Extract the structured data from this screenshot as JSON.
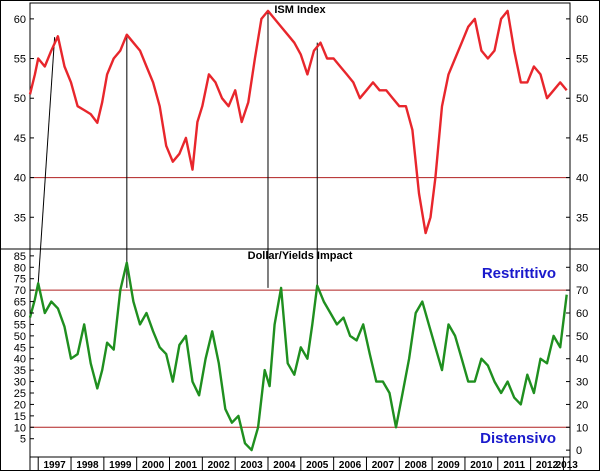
{
  "chart_data": [
    {
      "type": "line",
      "title": "ISM Index",
      "ylim": [
        31,
        62
      ],
      "yticks": [
        35,
        40,
        45,
        50,
        55,
        60
      ],
      "reference_line": 40,
      "colors": {
        "series": "#e8262c",
        "reference": "#b02020"
      },
      "series": [
        {
          "x": [
            1996.75,
            1996.9,
            1997.0,
            1997.2,
            1997.4,
            1997.6,
            1997.8,
            1998.0,
            1998.2,
            1998.4,
            1998.6,
            1998.8,
            1998.95,
            1999.1,
            1999.3,
            1999.5,
            1999.7,
            1999.9,
            2000.1,
            2000.3,
            2000.5,
            2000.7,
            2000.9,
            2001.1,
            2001.3,
            2001.5,
            2001.7,
            2001.85,
            2002.0,
            2002.2,
            2002.4,
            2002.6,
            2002.8,
            2003.0,
            2003.2,
            2003.4,
            2003.6,
            2003.8,
            2004.0,
            2004.2,
            2004.4,
            2004.6,
            2004.8,
            2005.0,
            2005.2,
            2005.4,
            2005.6,
            2005.8,
            2006.0,
            2006.2,
            2006.4,
            2006.6,
            2006.8,
            2007.0,
            2007.2,
            2007.4,
            2007.6,
            2007.8,
            2008.0,
            2008.2,
            2008.4,
            2008.6,
            2008.8,
            2008.95,
            2009.1,
            2009.3,
            2009.5,
            2009.7,
            2009.9,
            2010.1,
            2010.3,
            2010.5,
            2010.7,
            2010.9,
            2011.1,
            2011.3,
            2011.5,
            2011.7,
            2011.9,
            2012.1,
            2012.3,
            2012.5,
            2012.7,
            2012.9,
            2013.1
          ],
          "values": [
            50.5,
            53,
            55,
            54,
            56,
            57.8,
            54,
            52,
            49,
            48.5,
            48,
            46.9,
            49.5,
            53,
            55,
            56,
            58,
            57,
            56,
            54,
            52,
            49,
            44,
            42,
            43,
            45,
            41,
            47,
            49,
            53,
            52,
            50,
            49,
            51,
            47,
            49.5,
            55,
            60,
            61,
            60,
            59,
            58,
            57,
            55.5,
            53,
            56,
            57,
            55,
            55,
            54,
            53,
            52,
            50,
            51,
            52,
            51,
            51,
            50,
            49,
            49,
            46,
            38,
            33,
            35,
            40,
            49,
            53,
            55,
            57,
            59,
            60,
            56,
            55,
            56,
            60,
            61,
            56,
            52,
            52,
            54,
            53,
            50,
            51,
            52,
            51
          ]
        }
      ]
    },
    {
      "type": "line",
      "title": "Dollar/Yields Impact",
      "ylim": [
        -3,
        88
      ],
      "yticks_left": [
        5,
        10,
        15,
        20,
        25,
        30,
        35,
        40,
        45,
        50,
        55,
        60,
        65,
        70,
        75,
        80,
        85
      ],
      "yticks_right": [
        0,
        10,
        20,
        30,
        40,
        50,
        60,
        70,
        80
      ],
      "reference_lines": [
        70,
        10
      ],
      "annotations": [
        "Restrittivo",
        "Distensivo"
      ],
      "colors": {
        "series": "#1f8f1f",
        "reference": "#b02020",
        "annotation": "#1a1acc"
      },
      "series": [
        {
          "x": [
            1996.75,
            1996.9,
            1997.0,
            1997.2,
            1997.4,
            1997.6,
            1997.8,
            1998.0,
            1998.2,
            1998.4,
            1998.6,
            1998.8,
            1998.95,
            1999.1,
            1999.3,
            1999.5,
            1999.7,
            1999.9,
            2000.1,
            2000.3,
            2000.5,
            2000.7,
            2000.9,
            2001.1,
            2001.3,
            2001.5,
            2001.7,
            2001.9,
            2002.1,
            2002.3,
            2002.5,
            2002.7,
            2002.9,
            2003.1,
            2003.3,
            2003.5,
            2003.7,
            2003.9,
            2004.05,
            2004.2,
            2004.4,
            2004.6,
            2004.8,
            2005.0,
            2005.2,
            2005.35,
            2005.5,
            2005.7,
            2005.9,
            2006.1,
            2006.3,
            2006.5,
            2006.7,
            2006.9,
            2007.1,
            2007.3,
            2007.5,
            2007.7,
            2007.9,
            2008.1,
            2008.3,
            2008.5,
            2008.7,
            2008.9,
            2009.1,
            2009.3,
            2009.5,
            2009.7,
            2009.9,
            2010.1,
            2010.3,
            2010.5,
            2010.7,
            2010.9,
            2011.1,
            2011.3,
            2011.5,
            2011.7,
            2011.9,
            2012.1,
            2012.3,
            2012.5,
            2012.7,
            2012.9,
            2013.1
          ],
          "values": [
            58,
            66,
            73,
            60,
            65,
            62,
            54,
            40,
            42,
            55,
            38,
            27,
            35,
            47,
            44,
            70,
            82,
            65,
            55,
            60,
            52,
            45,
            42,
            30,
            46,
            50,
            30,
            24,
            40,
            52,
            38,
            18,
            12,
            15,
            3,
            0,
            10,
            35,
            28,
            55,
            71,
            38,
            33,
            45,
            40,
            55,
            72,
            65,
            60,
            55,
            58,
            50,
            48,
            55,
            42,
            30,
            30,
            25,
            10,
            25,
            40,
            60,
            65,
            55,
            45,
            35,
            55,
            50,
            40,
            30,
            30,
            40,
            37,
            30,
            25,
            30,
            23,
            20,
            33,
            25,
            40,
            38,
            50,
            45,
            68
          ]
        }
      ]
    }
  ],
  "x_axis": {
    "range": [
      1996.75,
      2013.2
    ],
    "years": [
      "1997",
      "1998",
      "1999",
      "2000",
      "2001",
      "2002",
      "2003",
      "2004",
      "2005",
      "2006",
      "2007",
      "2008",
      "2009",
      "2010",
      "2011",
      "2012",
      "2013"
    ]
  },
  "connector_lines": [
    {
      "top": {
        "x": 1997.5,
        "y": 57.7
      },
      "bottom": {
        "x": 1997.0,
        "y": 73
      }
    },
    {
      "top": {
        "x": 1999.7,
        "y": 58
      },
      "bottom": {
        "x": 1999.7,
        "y": 71
      }
    },
    {
      "top": {
        "x": 2004.0,
        "y": 61
      },
      "bottom": {
        "x": 2004.0,
        "y": 71
      }
    },
    {
      "top": {
        "x": 2005.5,
        "y": 57
      },
      "bottom": {
        "x": 2005.5,
        "y": 72
      }
    }
  ]
}
